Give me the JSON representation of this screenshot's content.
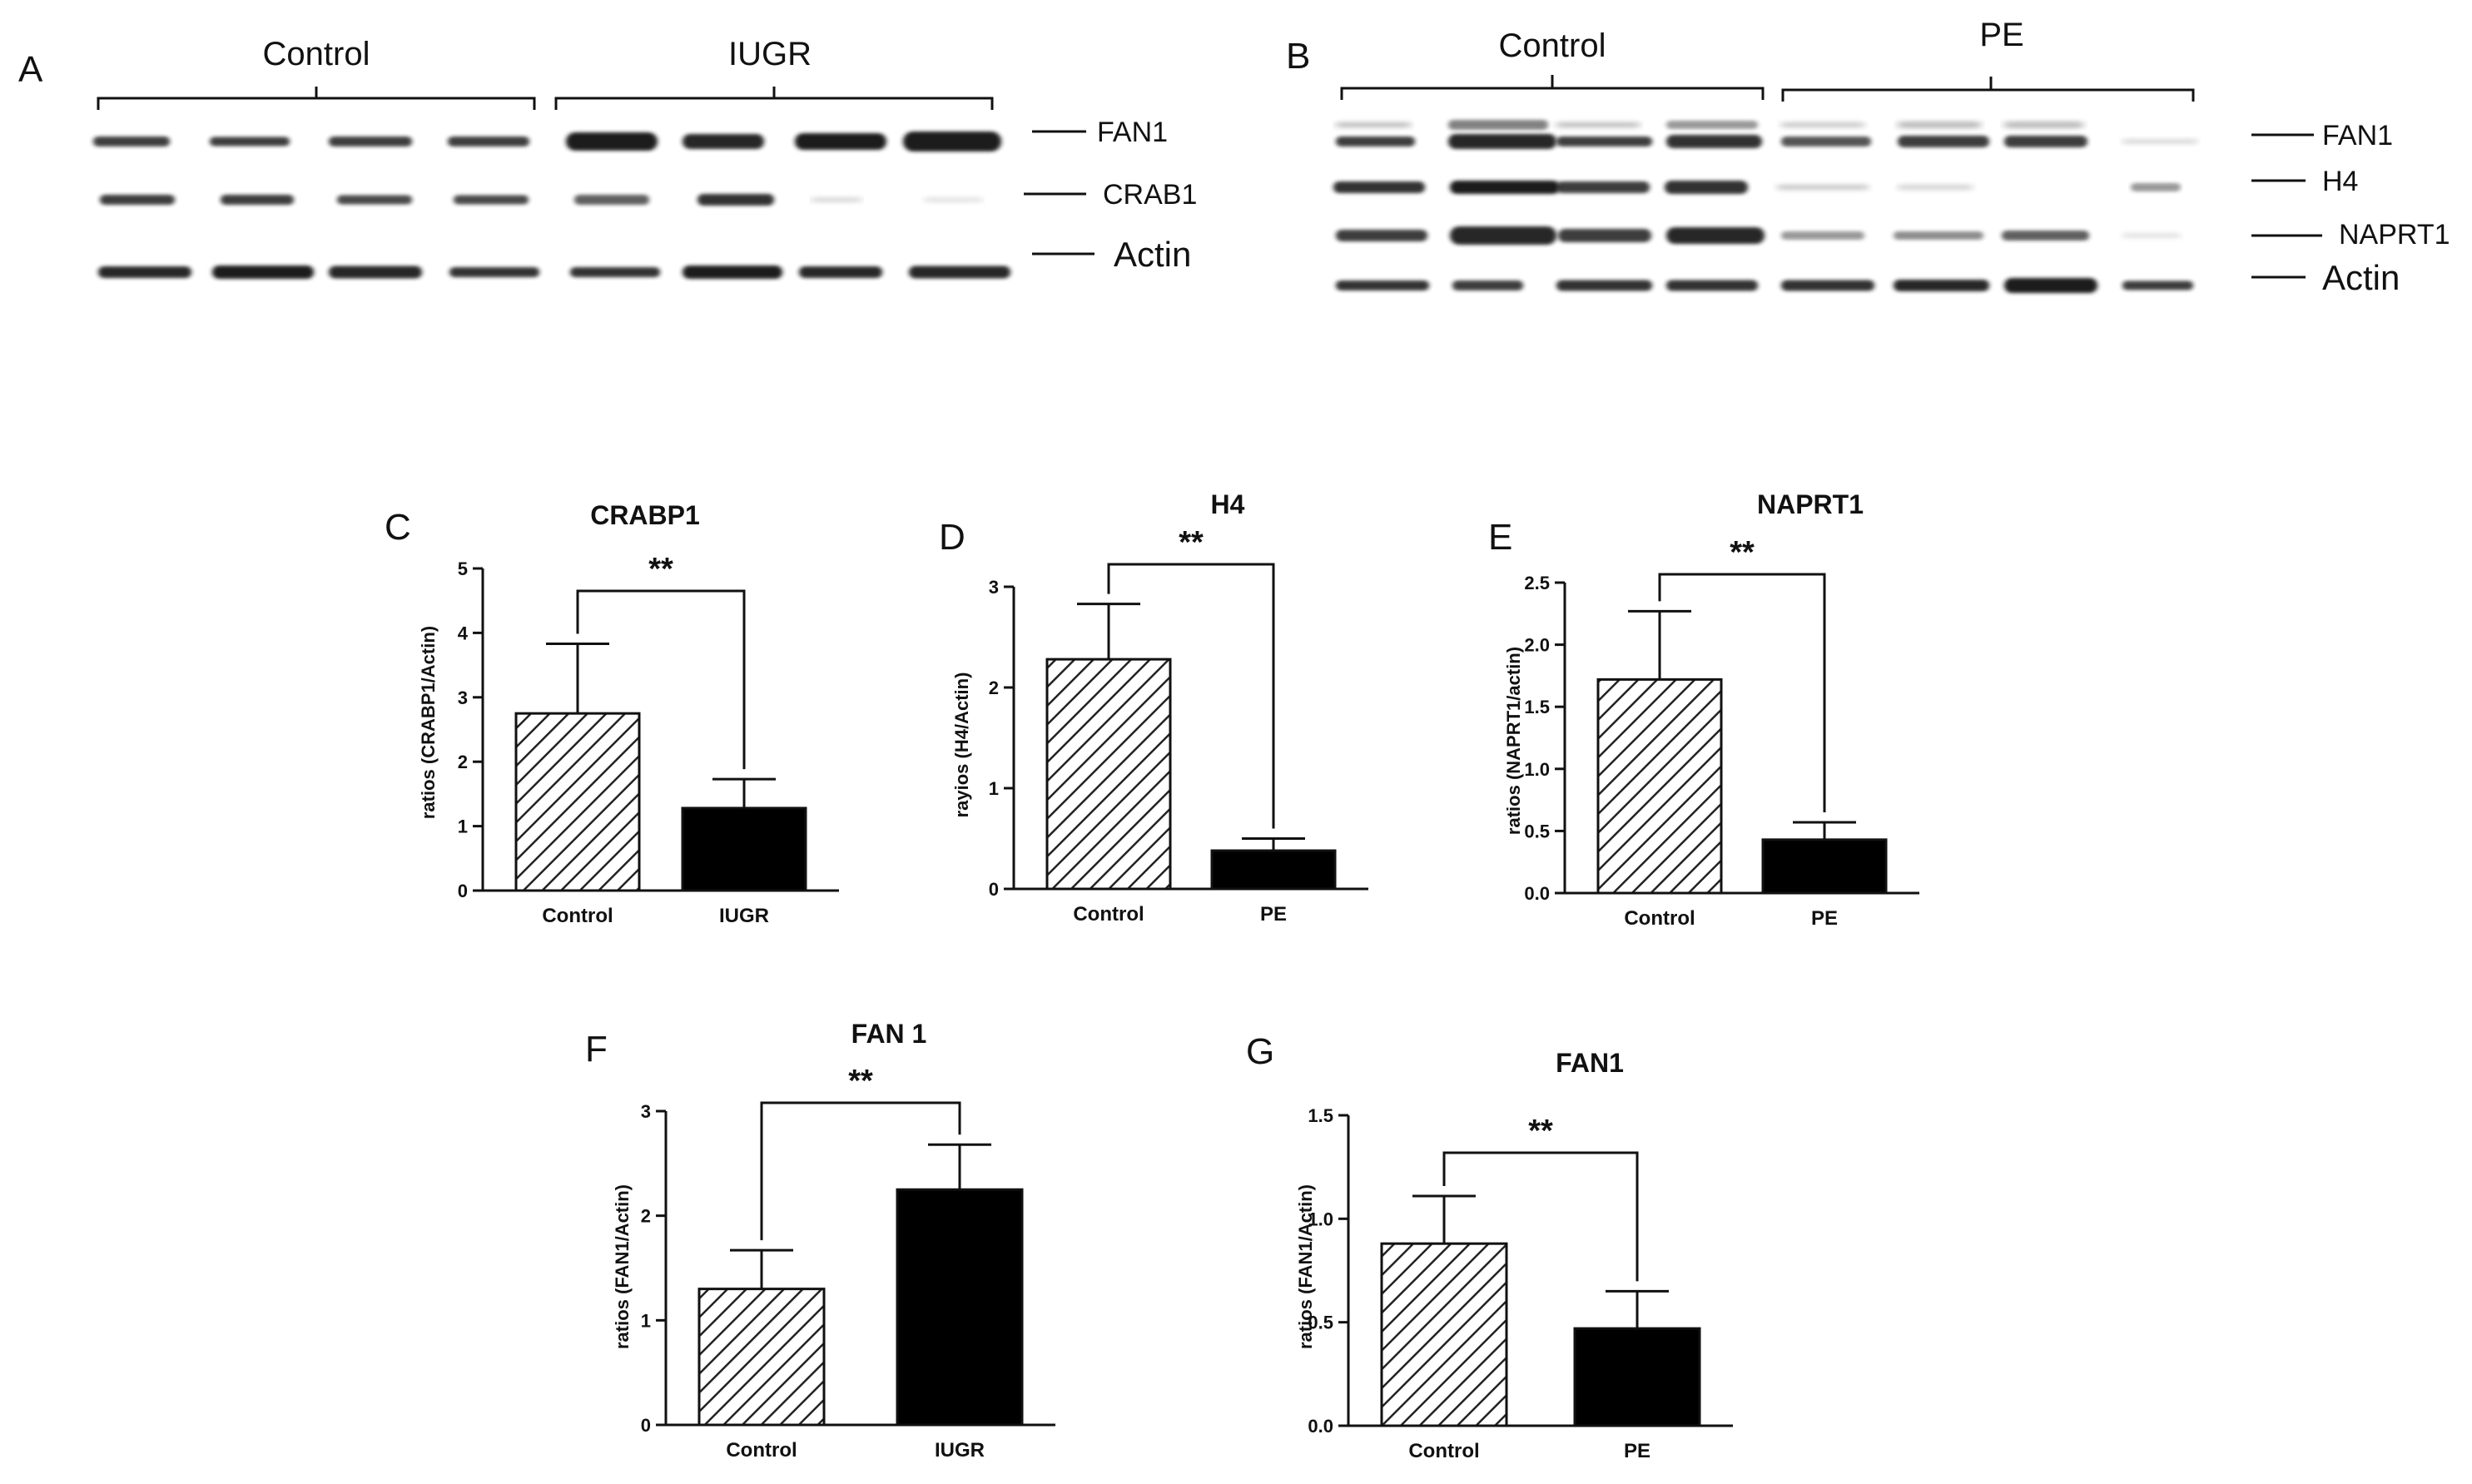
{
  "blots": [
    {
      "panel": "A",
      "groups": [
        "Control",
        "IUGR"
      ],
      "bands": [
        "FAN1",
        "CRAB1",
        "Actin"
      ]
    },
    {
      "panel": "B",
      "groups": [
        "Control",
        "PE"
      ],
      "bands": [
        "FAN1",
        "H4",
        "NAPRT1",
        "Actin"
      ]
    }
  ],
  "chart_data": [
    {
      "panel": "C",
      "type": "bar",
      "title": "CRABP1",
      "ylabel": "ratios (CRABP1/Actin)",
      "categories": [
        "Control",
        "IUGR"
      ],
      "values": [
        2.75,
        1.28
      ],
      "errors": [
        1.08,
        0.45
      ],
      "ylim": [
        0,
        5
      ],
      "yticks": [
        0,
        1,
        2,
        3,
        4,
        5
      ],
      "ytick_labels": [
        "0",
        "1",
        "2",
        "3",
        "4",
        "5"
      ],
      "significance": "**"
    },
    {
      "panel": "D",
      "type": "bar",
      "title": "H4",
      "ylabel": "rayios (H4/Actin)",
      "categories": [
        "Control",
        "PE"
      ],
      "values": [
        2.28,
        0.38
      ],
      "errors": [
        0.55,
        0.12
      ],
      "ylim": [
        0,
        3
      ],
      "yticks": [
        0,
        1,
        2,
        3
      ],
      "ytick_labels": [
        "0",
        "1",
        "2",
        "3"
      ],
      "significance": "**"
    },
    {
      "panel": "E",
      "type": "bar",
      "title": "NAPRT1",
      "ylabel": "ratios (NAPRT1/actin)",
      "categories": [
        "Control",
        "PE"
      ],
      "values": [
        1.72,
        0.43
      ],
      "errors": [
        0.55,
        0.14
      ],
      "ylim": [
        0,
        2.5
      ],
      "yticks": [
        0,
        0.5,
        1,
        1.5,
        2,
        2.5
      ],
      "ytick_labels": [
        "0.0",
        "0.5",
        "1.0",
        "1.5",
        "2.0",
        "2.5"
      ],
      "significance": "**"
    },
    {
      "panel": "F",
      "type": "bar",
      "title": "FAN 1",
      "ylabel": "ratios (FAN1/Actin)",
      "categories": [
        "Control",
        "IUGR"
      ],
      "values": [
        1.3,
        2.25
      ],
      "errors": [
        0.37,
        0.43
      ],
      "ylim": [
        0,
        3
      ],
      "yticks": [
        0,
        1,
        2,
        3
      ],
      "ytick_labels": [
        "0",
        "1",
        "2",
        "3"
      ],
      "significance": "**"
    },
    {
      "panel": "G",
      "type": "bar",
      "title": "FAN1",
      "ylabel": "ratios (FAN1/Actin)",
      "categories": [
        "Control",
        "PE"
      ],
      "values": [
        0.88,
        0.47
      ],
      "errors": [
        0.23,
        0.18
      ],
      "ylim": [
        0,
        1.5
      ],
      "yticks": [
        0,
        0.5,
        1,
        1.5
      ],
      "ytick_labels": [
        "0.0",
        "0.5",
        "1.0",
        "1.5"
      ],
      "significance": "**"
    }
  ],
  "colors": {
    "control_fill": "#ffffff",
    "control_hatch": "#222222",
    "treatment_fill": "#000000",
    "axis": "#111111",
    "band": "#1a1a1a"
  }
}
